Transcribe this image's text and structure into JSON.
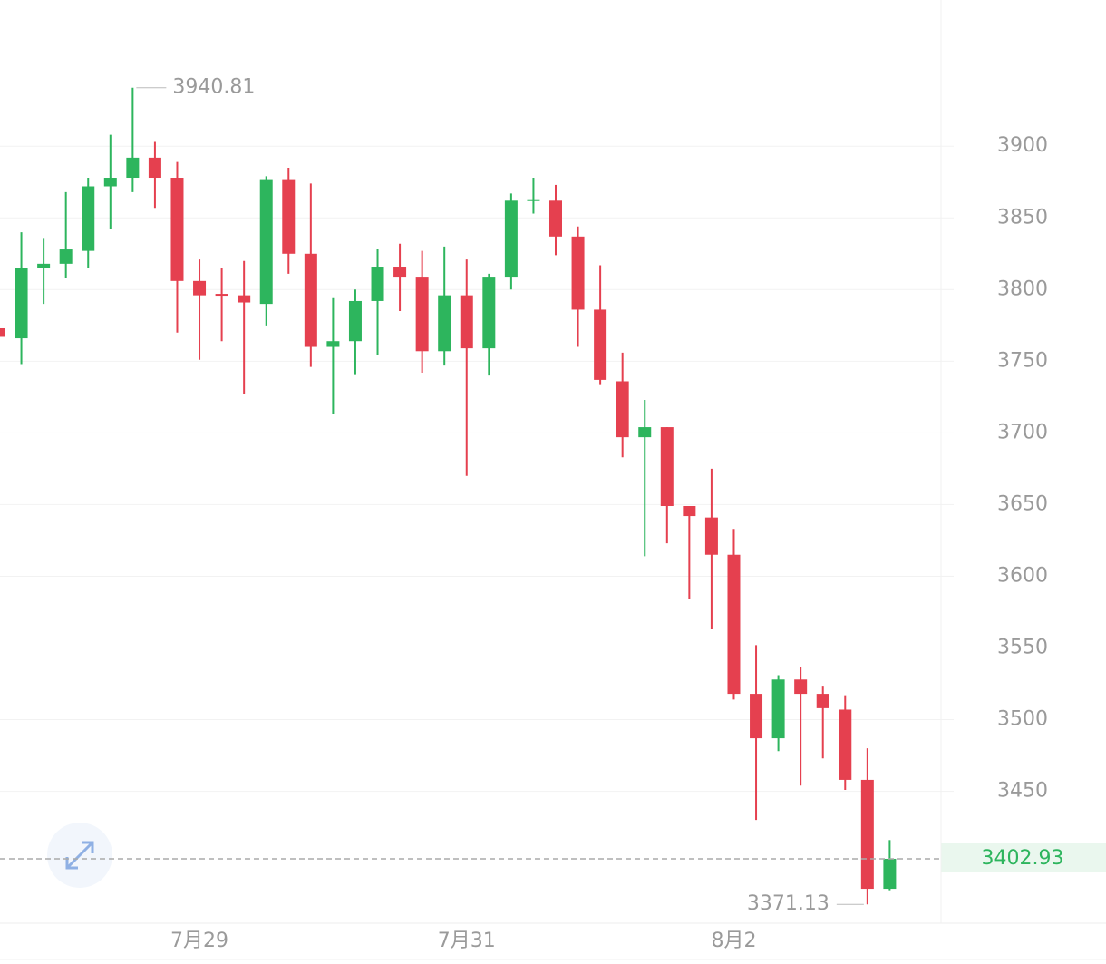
{
  "chart_data": {
    "type": "candlestick",
    "categories": [
      null,
      null,
      null,
      null,
      null,
      null,
      null,
      null,
      null,
      "7月29",
      null,
      null,
      null,
      null,
      null,
      null,
      null,
      null,
      null,
      null,
      null,
      "7月31",
      null,
      null,
      null,
      null,
      null,
      null,
      null,
      null,
      null,
      null,
      null,
      "8月2",
      null,
      null,
      null,
      null,
      null,
      null,
      null
    ],
    "open": [
      3773,
      3766,
      3815,
      3818,
      3827,
      3872,
      3878,
      3892,
      3878,
      3806,
      3797,
      3796,
      3790,
      3877,
      3825,
      3760,
      3764,
      3792,
      3816,
      3809,
      3757,
      3796,
      3759,
      3809,
      3862,
      3862,
      3837,
      3786,
      3736,
      3697,
      3704,
      3649,
      3641,
      3615,
      3518,
      3487,
      3528,
      3518,
      3507,
      3458,
      3382
    ],
    "high": [
      3775,
      3840,
      3836,
      3868,
      3878,
      3908,
      3940.81,
      3903,
      3889,
      3821,
      3815,
      3820,
      3879,
      3885,
      3874,
      3794,
      3800,
      3828,
      3832,
      3827,
      3830,
      3821,
      3811,
      3867,
      3878,
      3873,
      3844,
      3817,
      3756,
      3723,
      3704,
      3649,
      3675,
      3633,
      3552,
      3531,
      3537,
      3523,
      3517,
      3480,
      3416
    ],
    "low": [
      3765,
      3748,
      3790,
      3808,
      3815,
      3842,
      3868,
      3857,
      3770,
      3751,
      3764,
      3727,
      3775,
      3811,
      3746,
      3713,
      3741,
      3754,
      3785,
      3742,
      3747,
      3670,
      3740,
      3800,
      3853,
      3824,
      3760,
      3734,
      3683,
      3614,
      3623,
      3584,
      3563,
      3514,
      3430,
      3478,
      3454,
      3473,
      3451,
      3371.13,
      3381
    ],
    "close": [
      3767,
      3815,
      3818,
      3828,
      3872,
      3878,
      3892,
      3878,
      3806,
      3796,
      3796,
      3791,
      3877,
      3825,
      3760,
      3764,
      3792,
      3816,
      3809,
      3757,
      3796,
      3759,
      3809,
      3862,
      3863,
      3837,
      3786,
      3737,
      3697,
      3704,
      3649,
      3642,
      3615,
      3518,
      3487,
      3528,
      3518,
      3508,
      3458,
      3382,
      3402.93
    ],
    "up_color": "#2db55d",
    "down_color": "#e5404f",
    "ylim": [
      3358,
      4002
    ],
    "yticks": [
      3450,
      3500,
      3550,
      3600,
      3650,
      3700,
      3750,
      3800,
      3850,
      3900
    ],
    "grid": true
  }
}
